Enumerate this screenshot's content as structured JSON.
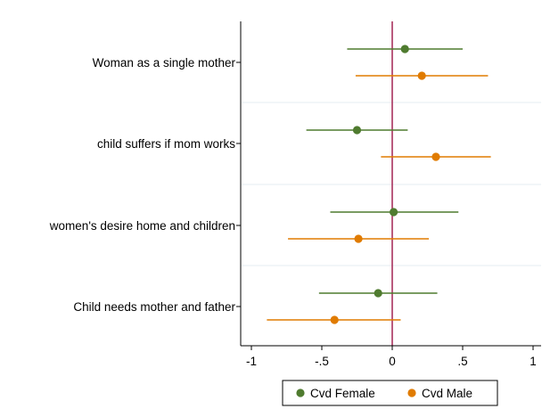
{
  "chart_data": {
    "type": "scatter",
    "subtype": "coefficient-plot",
    "orientation": "horizontal",
    "categories": [
      "Woman as a single mother",
      "child suffers if mom works",
      "women's desire home and children",
      "Child needs mother and father"
    ],
    "series": [
      {
        "name": "Cvd Female",
        "color": "#4f7b2f",
        "estimates": [
          0.09,
          -0.25,
          0.01,
          -0.1
        ],
        "ci_low": [
          -0.32,
          -0.61,
          -0.44,
          -0.52
        ],
        "ci_high": [
          0.5,
          0.11,
          0.47,
          0.32
        ]
      },
      {
        "name": "Cvd Male",
        "color": "#e07b00",
        "estimates": [
          0.21,
          0.31,
          -0.24,
          -0.41
        ],
        "ci_low": [
          -0.26,
          -0.08,
          -0.74,
          -0.89
        ],
        "ci_high": [
          0.68,
          0.7,
          0.26,
          0.06
        ]
      }
    ],
    "xticks": [
      -1,
      -0.5,
      0,
      0.5,
      1
    ],
    "xtick_labels": [
      "-1",
      "-.5",
      "0",
      ".5",
      "1"
    ],
    "xlim": [
      -1,
      1
    ],
    "reference_line": {
      "x": 0,
      "color": "#a8325e"
    },
    "xlabel": "",
    "ylabel": "",
    "title": "",
    "legend_position": "bottom"
  }
}
